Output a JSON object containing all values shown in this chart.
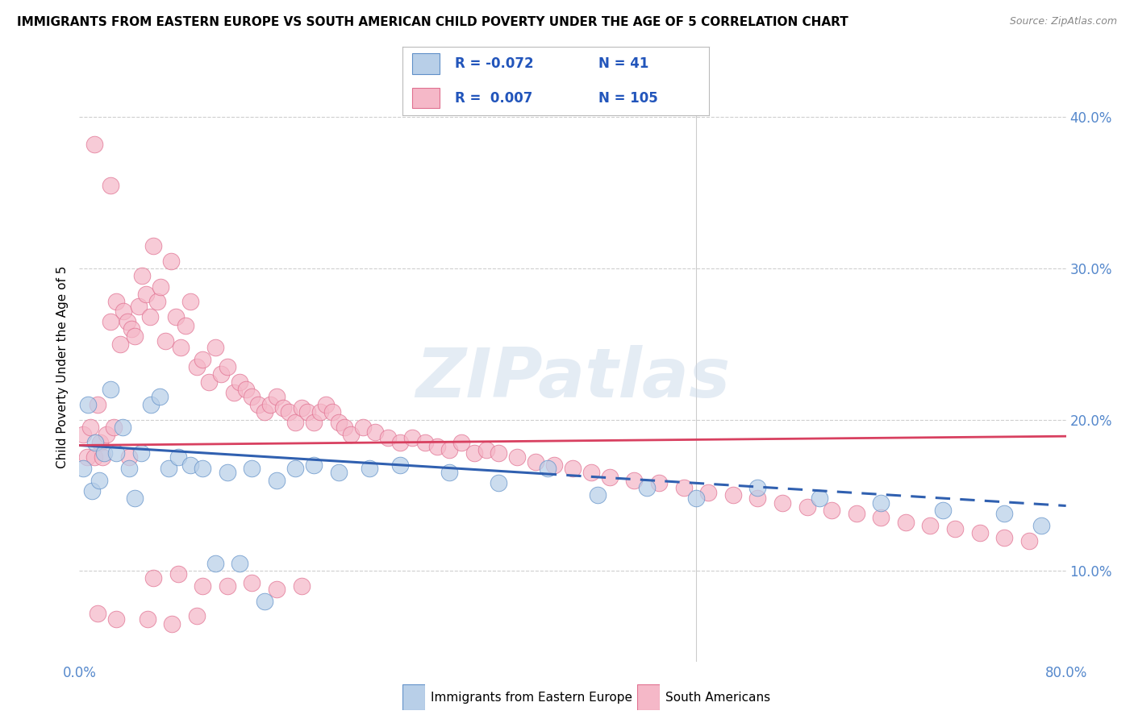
{
  "title": "IMMIGRANTS FROM EASTERN EUROPE VS SOUTH AMERICAN CHILD POVERTY UNDER THE AGE OF 5 CORRELATION CHART",
  "source": "Source: ZipAtlas.com",
  "ylabel": "Child Poverty Under the Age of 5",
  "blue_R": "-0.072",
  "blue_N": "41",
  "pink_R": "0.007",
  "pink_N": "105",
  "blue_fill": "#b8cfe8",
  "pink_fill": "#f5b8c8",
  "blue_edge": "#6090c8",
  "pink_edge": "#e07090",
  "blue_line_color": "#3060b0",
  "pink_line_color": "#d84060",
  "legend_label_blue": "Immigrants from Eastern Europe",
  "legend_label_pink": "South Americans",
  "watermark": "ZIPatlas",
  "xlim": [
    0.0,
    0.8
  ],
  "ylim": [
    0.04,
    0.43
  ],
  "yticks": [
    0.1,
    0.2,
    0.3,
    0.4
  ],
  "ytick_labels": [
    "10.0%",
    "20.0%",
    "30.0%",
    "40.0%"
  ],
  "blue_line_x0": 0.0,
  "blue_line_y0": 0.183,
  "blue_line_x_solid_end": 0.375,
  "blue_line_x1": 0.8,
  "blue_line_y1": 0.143,
  "pink_line_x0": 0.0,
  "pink_line_y0": 0.183,
  "pink_line_x1": 0.8,
  "pink_line_y1": 0.189,
  "blue_x": [
    0.003,
    0.007,
    0.01,
    0.013,
    0.016,
    0.02,
    0.025,
    0.03,
    0.035,
    0.04,
    0.045,
    0.05,
    0.058,
    0.065,
    0.072,
    0.08,
    0.09,
    0.1,
    0.11,
    0.12,
    0.13,
    0.14,
    0.15,
    0.16,
    0.175,
    0.19,
    0.21,
    0.235,
    0.26,
    0.3,
    0.34,
    0.38,
    0.42,
    0.46,
    0.5,
    0.55,
    0.6,
    0.65,
    0.7,
    0.75,
    0.78
  ],
  "blue_y": [
    0.168,
    0.21,
    0.153,
    0.185,
    0.16,
    0.178,
    0.22,
    0.178,
    0.195,
    0.168,
    0.148,
    0.178,
    0.21,
    0.215,
    0.168,
    0.175,
    0.17,
    0.168,
    0.105,
    0.165,
    0.105,
    0.168,
    0.08,
    0.16,
    0.168,
    0.17,
    0.165,
    0.168,
    0.17,
    0.165,
    0.158,
    0.168,
    0.15,
    0.155,
    0.148,
    0.155,
    0.148,
    0.145,
    0.14,
    0.138,
    0.13
  ],
  "pink_x": [
    0.003,
    0.006,
    0.009,
    0.012,
    0.015,
    0.017,
    0.019,
    0.022,
    0.025,
    0.028,
    0.03,
    0.033,
    0.036,
    0.039,
    0.042,
    0.045,
    0.048,
    0.051,
    0.054,
    0.057,
    0.06,
    0.063,
    0.066,
    0.07,
    0.074,
    0.078,
    0.082,
    0.086,
    0.09,
    0.095,
    0.1,
    0.105,
    0.11,
    0.115,
    0.12,
    0.125,
    0.13,
    0.135,
    0.14,
    0.145,
    0.15,
    0.155,
    0.16,
    0.165,
    0.17,
    0.175,
    0.18,
    0.185,
    0.19,
    0.195,
    0.2,
    0.205,
    0.21,
    0.215,
    0.22,
    0.23,
    0.24,
    0.25,
    0.26,
    0.27,
    0.28,
    0.29,
    0.3,
    0.31,
    0.32,
    0.33,
    0.34,
    0.355,
    0.37,
    0.385,
    0.4,
    0.415,
    0.43,
    0.45,
    0.47,
    0.49,
    0.51,
    0.53,
    0.55,
    0.57,
    0.59,
    0.61,
    0.63,
    0.65,
    0.67,
    0.69,
    0.71,
    0.73,
    0.75,
    0.77,
    0.012,
    0.025,
    0.04,
    0.06,
    0.08,
    0.1,
    0.12,
    0.14,
    0.16,
    0.18,
    0.015,
    0.03,
    0.055,
    0.075,
    0.095
  ],
  "pink_y": [
    0.19,
    0.175,
    0.195,
    0.175,
    0.21,
    0.185,
    0.175,
    0.19,
    0.265,
    0.195,
    0.278,
    0.25,
    0.272,
    0.265,
    0.26,
    0.255,
    0.275,
    0.295,
    0.283,
    0.268,
    0.315,
    0.278,
    0.288,
    0.252,
    0.305,
    0.268,
    0.248,
    0.262,
    0.278,
    0.235,
    0.24,
    0.225,
    0.248,
    0.23,
    0.235,
    0.218,
    0.225,
    0.22,
    0.215,
    0.21,
    0.205,
    0.21,
    0.215,
    0.208,
    0.205,
    0.198,
    0.208,
    0.205,
    0.198,
    0.205,
    0.21,
    0.205,
    0.198,
    0.195,
    0.19,
    0.195,
    0.192,
    0.188,
    0.185,
    0.188,
    0.185,
    0.182,
    0.18,
    0.185,
    0.178,
    0.18,
    0.178,
    0.175,
    0.172,
    0.17,
    0.168,
    0.165,
    0.162,
    0.16,
    0.158,
    0.155,
    0.152,
    0.15,
    0.148,
    0.145,
    0.142,
    0.14,
    0.138,
    0.135,
    0.132,
    0.13,
    0.128,
    0.125,
    0.122,
    0.12,
    0.382,
    0.355,
    0.175,
    0.095,
    0.098,
    0.09,
    0.09,
    0.092,
    0.088,
    0.09,
    0.072,
    0.068,
    0.068,
    0.065,
    0.07
  ]
}
